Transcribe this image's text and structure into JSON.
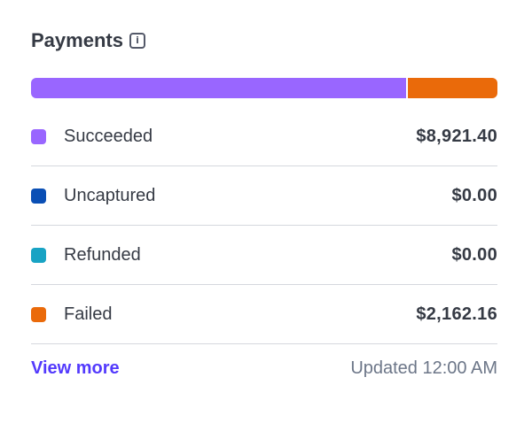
{
  "header": {
    "title": "Payments",
    "info_icon": "info-icon"
  },
  "breakdown": [
    {
      "label": "Succeeded",
      "amount": "$8,921.40",
      "value": 8921.4,
      "color": "#9966ff"
    },
    {
      "label": "Uncaptured",
      "amount": "$0.00",
      "value": 0,
      "color": "#0a4fb5"
    },
    {
      "label": "Refunded",
      "amount": "$0.00",
      "value": 0,
      "color": "#18a3c4"
    },
    {
      "label": "Failed",
      "amount": "$2,162.16",
      "value": 2162.16,
      "color": "#ea6a0a"
    }
  ],
  "footer": {
    "view_more": "View more",
    "updated": "Updated 12:00 AM"
  }
}
